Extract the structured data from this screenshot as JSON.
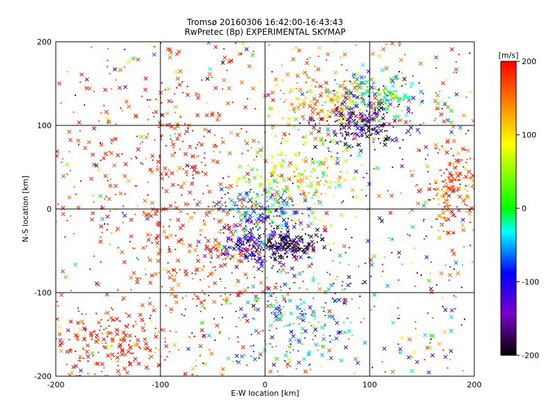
{
  "chart_data": {
    "type": "scatter",
    "title": "Tromsø 20160306 16:42:00-16:43:43",
    "subtitle": "RwPretec (8p) EXPERIMENTAL SKYMAP",
    "xlabel": "E-W location [km]",
    "ylabel": "N-S location [km]",
    "xlim": [
      -200,
      200
    ],
    "ylim": [
      -200,
      200
    ],
    "xticks": [
      "-200",
      "-100",
      "0",
      "100",
      "200"
    ],
    "yticks": [
      "-200",
      "-100",
      "0",
      "100",
      "200"
    ],
    "grid": true,
    "colorbar": {
      "label": "[m/s]",
      "range": [
        -200,
        200
      ],
      "ticks": [
        "200",
        "100",
        "0",
        "-100",
        "-200"
      ],
      "colormap": [
        "#000000",
        "#7a00c8",
        "#0000ff",
        "#00ffff",
        "#00ff00",
        "#ffff00",
        "#ff8000",
        "#ff0000"
      ]
    },
    "markers": [
      "dot",
      "x"
    ],
    "clusters": [
      {
        "x": -10,
        "y": -45,
        "value": -120,
        "sx": 20,
        "sy": 12
      },
      {
        "x": 20,
        "y": -45,
        "value": -190,
        "sx": 15,
        "sy": 10
      },
      {
        "x": 0,
        "y": 0,
        "value": -70,
        "sx": 20,
        "sy": 15
      },
      {
        "x": 30,
        "y": 35,
        "value": 60,
        "sx": 25,
        "sy": 25
      },
      {
        "x": 60,
        "y": 130,
        "value": 130,
        "sx": 30,
        "sy": 20
      },
      {
        "x": 110,
        "y": 135,
        "value": -20,
        "sx": 25,
        "sy": 15
      },
      {
        "x": 90,
        "y": 100,
        "value": -170,
        "sx": 20,
        "sy": 15
      },
      {
        "x": -60,
        "y": -60,
        "value": 180,
        "sx": 40,
        "sy": 35
      },
      {
        "x": -80,
        "y": 60,
        "value": 195,
        "sx": 40,
        "sy": 50
      },
      {
        "x": -150,
        "y": -160,
        "value": 190,
        "sx": 30,
        "sy": 20
      },
      {
        "x": 30,
        "y": -130,
        "value": -60,
        "sx": 30,
        "sy": 30
      },
      {
        "x": 180,
        "y": 20,
        "value": 170,
        "sx": 15,
        "sy": 30
      }
    ]
  }
}
